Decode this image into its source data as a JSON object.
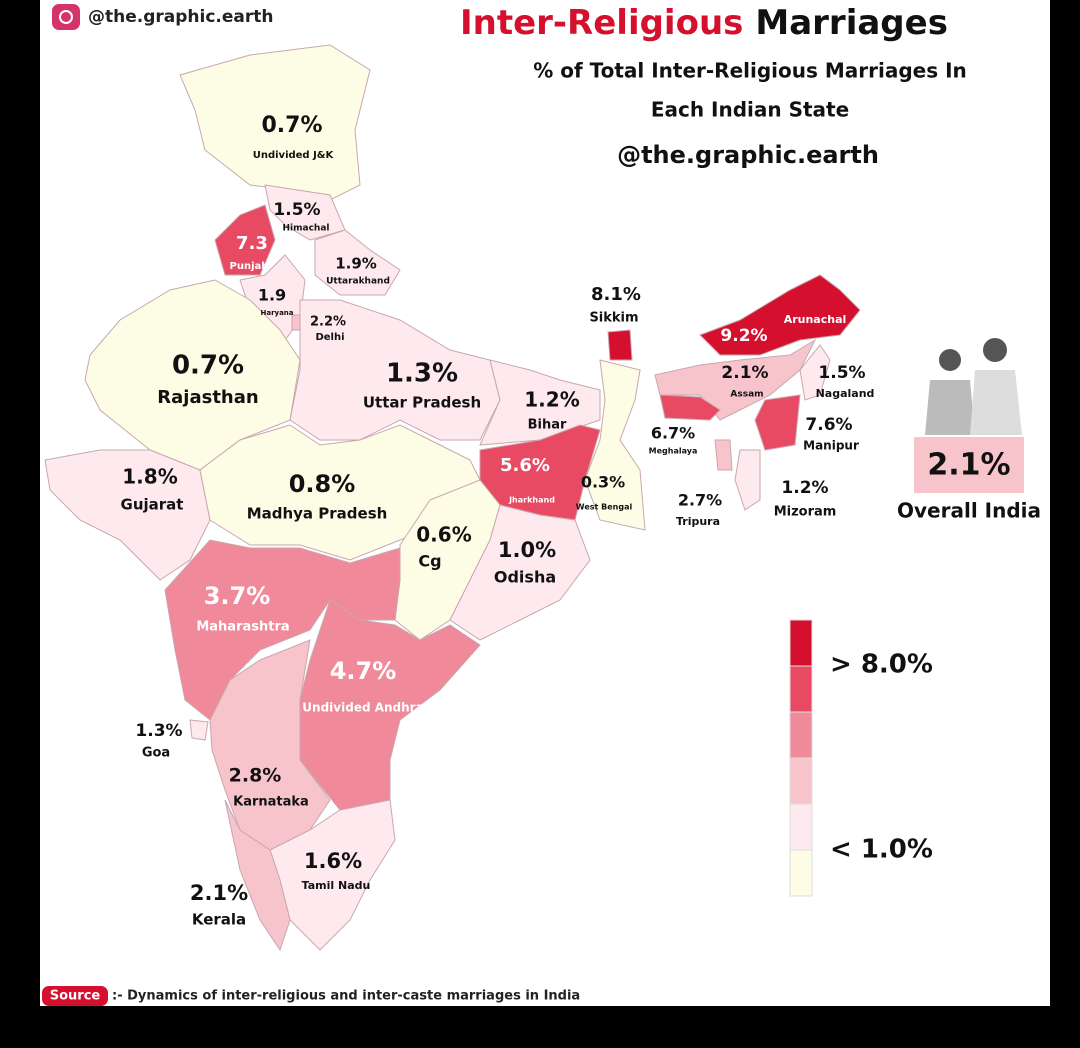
{
  "header": {
    "handle": "@the.graphic.earth",
    "title_highlight": "Inter-Religious",
    "title_rest": "Marriages",
    "subtitle_line1": "% of Total Inter-Religious Marriages In",
    "subtitle_line2": "Each Indian State",
    "handle2": "@the.graphic.earth"
  },
  "states": [
    {
      "value": "0.7%",
      "name": "Undivided J&K",
      "color": "#fdfde6"
    },
    {
      "value": "1.5%",
      "name": "Himachal",
      "color": "#fde9ee"
    },
    {
      "value": "7.3",
      "name": "Punjab",
      "color": "#e84a63"
    },
    {
      "value": "1.9%",
      "name": "Uttarakhand",
      "color": "#fde9ee"
    },
    {
      "value": "1.9",
      "name": "Haryana",
      "color": "#fde9ee"
    },
    {
      "value": "2.2%",
      "name": "Delhi",
      "color": "#f8c4cc"
    },
    {
      "value": "0.7%",
      "name": "Rajasthan",
      "color": "#fdfde6"
    },
    {
      "value": "1.3%",
      "name": "Uttar Pradesh",
      "color": "#fde9ee"
    },
    {
      "value": "1.2%",
      "name": "Bihar",
      "color": "#fde9ee"
    },
    {
      "value": "8.1%",
      "name": "Sikkim",
      "color": "#d4102e"
    },
    {
      "value": "0.3%",
      "name": "West Bengal",
      "color": "#fdfde6"
    },
    {
      "value": "5.6%",
      "name": "Jharkhand",
      "color": "#e84a63"
    },
    {
      "value": "1.8%",
      "name": "Gujarat",
      "color": "#fde9ee"
    },
    {
      "value": "0.8%",
      "name": "Madhya Pradesh",
      "color": "#fdfde6"
    },
    {
      "value": "0.6%",
      "name": "Cg",
      "color": "#fdfde6"
    },
    {
      "value": "1.0%",
      "name": "Odisha",
      "color": "#fde9ee"
    },
    {
      "value": "3.7%",
      "name": "Maharashtra",
      "color": "#f08a9b"
    },
    {
      "value": "4.7%",
      "name": "Undivided Andhra",
      "color": "#f08a9b"
    },
    {
      "value": "1.3%",
      "name": "Goa",
      "color": "#fde9ee"
    },
    {
      "value": "2.8%",
      "name": "Karnataka",
      "color": "#f8c4cc"
    },
    {
      "value": "1.6%",
      "name": "Tamil Nadu",
      "color": "#fde9ee"
    },
    {
      "value": "2.1%",
      "name": "Kerala",
      "color": "#f8c4cc"
    },
    {
      "value": "9.2%",
      "name": "Arunachal",
      "color": "#d4102e"
    },
    {
      "value": "2.1%",
      "name": "Assam",
      "color": "#f8c4cc"
    },
    {
      "value": "1.5%",
      "name": "Nagaland",
      "color": "#fde9ee"
    },
    {
      "value": "6.7%",
      "name": "Meghalaya",
      "color": "#e84a63"
    },
    {
      "value": "7.6%",
      "name": "Manipur",
      "color": "#e84a63"
    },
    {
      "value": "2.7%",
      "name": "Tripura",
      "color": "#f8c4cc"
    },
    {
      "value": "1.2%",
      "name": "Mizoram",
      "color": "#fde9ee"
    }
  ],
  "overall": {
    "value": "2.1%",
    "label": "Overall India"
  },
  "legend": {
    "colors": [
      "#d4102e",
      "#e84a63",
      "#f08a9b",
      "#f8c4cc",
      "#fde9ee",
      "#fdfde6"
    ],
    "high_label": "> 8.0%",
    "low_label": "< 1.0%"
  },
  "source": {
    "tag": "Source",
    "text": ":- Dynamics of inter-religious and inter-caste marriages in India"
  }
}
